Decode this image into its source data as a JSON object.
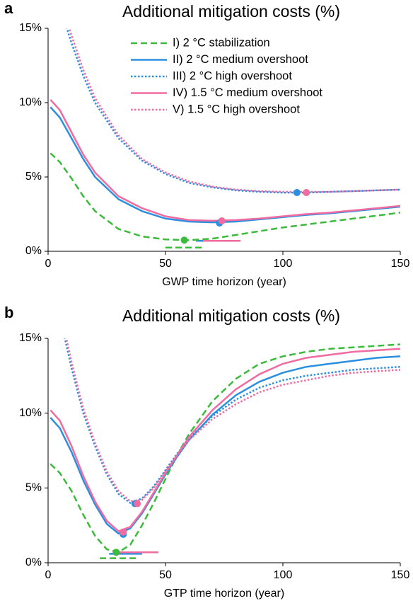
{
  "chart_data": [
    {
      "type": "line",
      "panel_label": "a",
      "title": "Additional mitigation costs (%)",
      "xlabel": "GWP time horizon (year)",
      "xlim": [
        0,
        150
      ],
      "xticks": [
        0,
        50,
        100,
        150
      ],
      "ylim": [
        0,
        15
      ],
      "yticks": [
        {
          "value": 0,
          "label": "0%"
        },
        {
          "value": 5,
          "label": "5%"
        },
        {
          "value": 10,
          "label": "10%"
        },
        {
          "value": 15,
          "label": "15%"
        }
      ],
      "legend": true,
      "x": [
        1,
        5,
        10,
        15,
        20,
        30,
        40,
        50,
        60,
        70,
        80,
        90,
        100,
        110,
        120,
        130,
        140,
        150
      ],
      "series": [
        {
          "name": "I) 2 °C stabilization",
          "color": "#3cba3c",
          "dash": "dashed",
          "values": [
            6.6,
            6.0,
            4.9,
            3.7,
            2.7,
            1.5,
            1.0,
            0.8,
            0.75,
            0.85,
            1.1,
            1.35,
            1.6,
            1.8,
            2.0,
            2.2,
            2.4,
            2.6
          ],
          "optimum": [
            58,
            0.75
          ],
          "range": [
            50,
            66,
            0.25
          ]
        },
        {
          "name": "II) 2 °C medium overshoot",
          "color": "#2b8fe0",
          "dash": "solid",
          "values": [
            9.7,
            9.0,
            7.6,
            6.2,
            5.0,
            3.5,
            2.7,
            2.2,
            2.0,
            1.95,
            2.0,
            2.15,
            2.3,
            2.45,
            2.55,
            2.7,
            2.85,
            3.0
          ],
          "optimum": [
            73,
            1.9
          ],
          "range": [
            63,
            80,
            0.7
          ]
        },
        {
          "name": "III) 2 °C high overshoot",
          "color": "#2b8fe0",
          "dash": "dotted",
          "values": [
            19,
            16.5,
            14.0,
            11.8,
            10.0,
            7.6,
            6.1,
            5.2,
            4.6,
            4.3,
            4.1,
            4.0,
            3.95,
            3.95,
            4.0,
            4.05,
            4.1,
            4.15
          ],
          "optimum": [
            106,
            3.95
          ]
        },
        {
          "name": "IV) 1.5 °C medium overshoot",
          "color": "#f06ba0",
          "dash": "solid",
          "values": [
            10.2,
            9.5,
            8.0,
            6.5,
            5.3,
            3.7,
            2.9,
            2.35,
            2.1,
            2.05,
            2.1,
            2.2,
            2.35,
            2.5,
            2.6,
            2.75,
            2.9,
            3.05
          ],
          "optimum": [
            74,
            2.05
          ],
          "range": [
            66,
            82,
            0.7
          ]
        },
        {
          "name": "V) 1.5 °C high overshoot",
          "color": "#f06ba0",
          "dash": "dotted",
          "values": [
            19.5,
            17,
            14.5,
            12.2,
            10.3,
            7.8,
            6.2,
            5.3,
            4.7,
            4.35,
            4.15,
            4.05,
            4.0,
            4.0,
            4.0,
            4.05,
            4.1,
            4.15
          ],
          "optimum": [
            110,
            3.95
          ]
        }
      ]
    },
    {
      "type": "line",
      "panel_label": "b",
      "title": "Additional mitigation costs (%)",
      "xlabel": "GTP time horizon (year)",
      "xlim": [
        0,
        150
      ],
      "xticks": [
        0,
        50,
        100,
        150
      ],
      "ylim": [
        0,
        15
      ],
      "yticks": [
        {
          "value": 0,
          "label": "0%"
        },
        {
          "value": 5,
          "label": "5%"
        },
        {
          "value": 10,
          "label": "10%"
        },
        {
          "value": 15,
          "label": "15%"
        }
      ],
      "legend": false,
      "x": [
        1,
        5,
        10,
        15,
        20,
        25,
        30,
        35,
        40,
        45,
        50,
        55,
        60,
        70,
        80,
        90,
        100,
        110,
        120,
        130,
        140,
        150
      ],
      "series": [
        {
          "color": "#3cba3c",
          "dash": "dashed",
          "values": [
            6.6,
            6.0,
            4.8,
            3.2,
            1.8,
            0.9,
            0.7,
            1.2,
            2.5,
            4.0,
            5.6,
            7.2,
            8.6,
            10.8,
            12.3,
            13.3,
            13.8,
            14.1,
            14.3,
            14.4,
            14.5,
            14.6
          ],
          "optimum": [
            29,
            0.7
          ],
          "range": [
            22,
            38,
            0.3
          ]
        },
        {
          "color": "#2b8fe0",
          "dash": "solid",
          "values": [
            9.7,
            9.0,
            7.4,
            5.5,
            3.9,
            2.6,
            1.95,
            2.3,
            3.3,
            4.6,
            5.9,
            7.1,
            8.2,
            9.9,
            11.2,
            12.1,
            12.7,
            13.1,
            13.3,
            13.5,
            13.7,
            13.8
          ],
          "optimum": [
            32,
            1.9
          ],
          "range": [
            26,
            40,
            0.6
          ]
        },
        {
          "color": "#2b8fe0",
          "dash": "dotted",
          "values": [
            19,
            16.5,
            13.0,
            10.0,
            7.8,
            5.9,
            4.6,
            4.0,
            4.3,
            5.1,
            6.2,
            7.3,
            8.3,
            9.8,
            10.9,
            11.7,
            12.2,
            12.5,
            12.7,
            12.9,
            13.0,
            13.1
          ],
          "optimum": [
            37,
            3.95
          ]
        },
        {
          "color": "#f06ba0",
          "dash": "solid",
          "values": [
            10.2,
            9.5,
            7.8,
            5.8,
            4.1,
            2.8,
            2.1,
            2.4,
            3.4,
            4.7,
            6.0,
            7.2,
            8.4,
            10.2,
            11.6,
            12.6,
            13.3,
            13.7,
            13.9,
            14.1,
            14.2,
            14.3
          ],
          "optimum": [
            32,
            2.05
          ],
          "range": [
            29,
            47,
            0.7
          ]
        },
        {
          "color": "#f06ba0",
          "dash": "dotted",
          "values": [
            19.5,
            17,
            13.4,
            10.3,
            8.0,
            6.1,
            4.8,
            4.1,
            4.2,
            5.0,
            6.1,
            7.2,
            8.2,
            9.6,
            10.6,
            11.4,
            11.9,
            12.2,
            12.5,
            12.7,
            12.8,
            12.9
          ],
          "optimum": [
            38,
            3.95
          ]
        }
      ]
    }
  ]
}
